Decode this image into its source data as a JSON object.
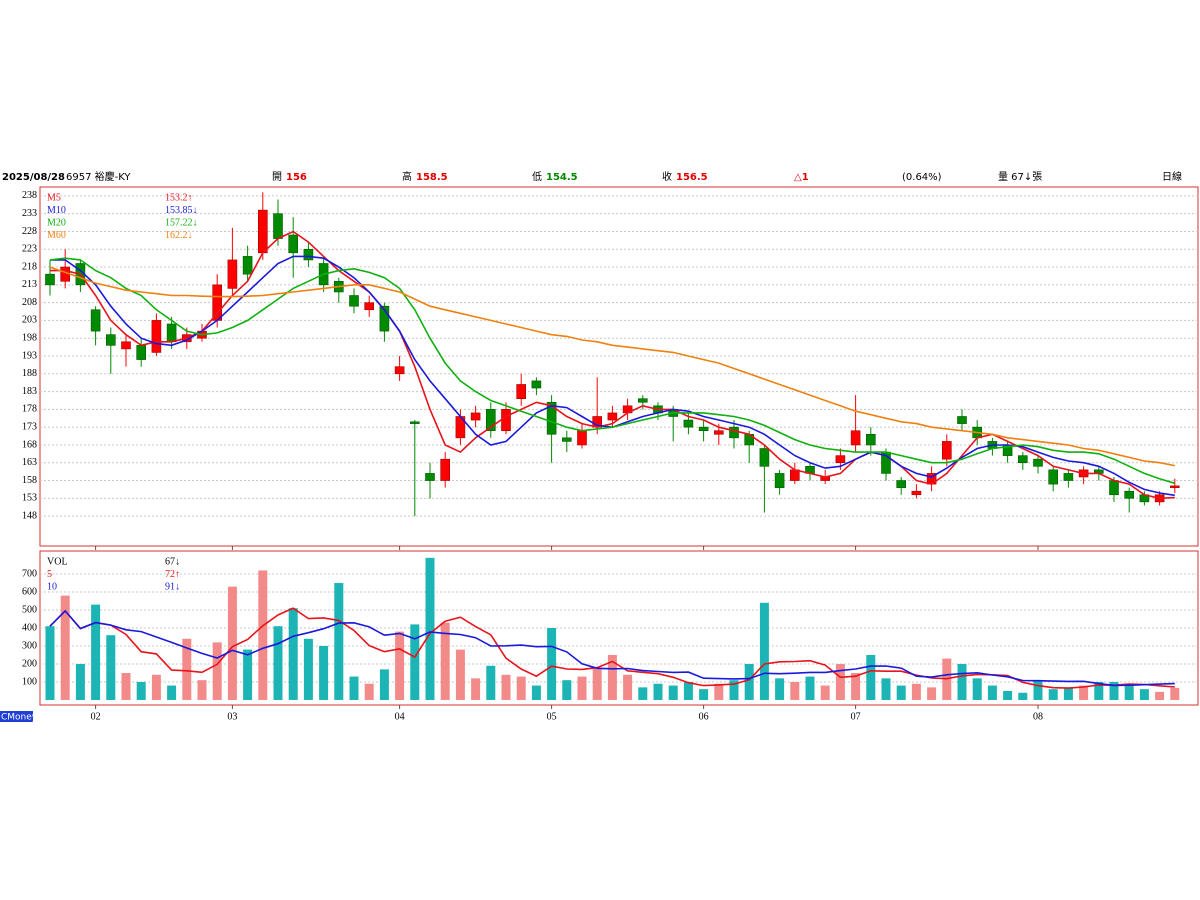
{
  "header": {
    "date": "2025/08/28",
    "name": "6957 裕慶-KY",
    "open_label": "開",
    "open": "156",
    "high_label": "高",
    "high": "158.5",
    "low_label": "低",
    "low": "154.5",
    "close_label": "收",
    "close": "156.5",
    "change": "△1",
    "change_pct": "(0.64%)",
    "volume": "量 67↓張",
    "period": "日線"
  },
  "footer": "CMoney",
  "chart_data": [
    {
      "type": "candlestick",
      "up_color": "#ff0000",
      "down_color": "#008a00",
      "grid": true,
      "categories": [
        null,
        null,
        null,
        "02",
        null,
        null,
        null,
        null,
        null,
        null,
        null,
        null,
        "03",
        null,
        null,
        null,
        null,
        null,
        null,
        null,
        null,
        null,
        null,
        "04",
        null,
        null,
        null,
        null,
        null,
        null,
        null,
        null,
        null,
        "05",
        null,
        null,
        null,
        null,
        null,
        null,
        null,
        null,
        null,
        "06",
        null,
        null,
        null,
        null,
        null,
        null,
        null,
        null,
        null,
        "07",
        null,
        null,
        null,
        null,
        null,
        null,
        null,
        null,
        null,
        null,
        null,
        "08",
        null,
        null,
        null,
        null,
        null,
        null,
        null,
        null,
        null
      ],
      "open": [
        216,
        214,
        219,
        206,
        199,
        195,
        196,
        194,
        202,
        197,
        198,
        203,
        212,
        221,
        222,
        233,
        227,
        223,
        219,
        214,
        210,
        206,
        207,
        188,
        174.5,
        160,
        158,
        170,
        175,
        178,
        172,
        181,
        186,
        180,
        170,
        168,
        173,
        175,
        177,
        181,
        179,
        178,
        175,
        173,
        171,
        173,
        171,
        167,
        160,
        158,
        162,
        158,
        163,
        168,
        171,
        166,
        158,
        154,
        157,
        164,
        176,
        173,
        169,
        168,
        165,
        164,
        161,
        160,
        159,
        161,
        158,
        155,
        154,
        152,
        156
      ],
      "high": [
        220,
        223,
        220,
        207,
        201,
        199,
        198,
        205,
        204,
        201,
        202,
        216,
        229,
        224,
        239,
        237,
        232,
        225,
        221,
        215,
        212,
        210,
        208,
        193,
        175,
        163,
        166,
        178,
        179,
        180,
        180,
        188,
        187,
        182,
        172,
        174,
        187,
        179,
        181,
        182,
        180,
        179,
        177,
        175,
        174,
        175,
        172,
        168,
        161,
        163,
        163,
        161,
        167,
        182,
        173,
        167,
        159,
        157,
        162,
        171,
        178,
        175,
        170,
        169,
        166,
        165,
        162,
        161,
        162,
        162,
        159,
        156,
        155,
        155,
        158.5
      ],
      "low": [
        210,
        212,
        211,
        196,
        188,
        190,
        190,
        193,
        195,
        195,
        197,
        201,
        210,
        214,
        220,
        224,
        215,
        218,
        211,
        208,
        205,
        204,
        197,
        186,
        148,
        153,
        156,
        168,
        173,
        170,
        171,
        179,
        182,
        163,
        166,
        167,
        171,
        173,
        175,
        178,
        175,
        169,
        171,
        169,
        168,
        167,
        163,
        149,
        154,
        157,
        158,
        157,
        161,
        166,
        165,
        158,
        154,
        153,
        155,
        162,
        172,
        168,
        165,
        163,
        161,
        160,
        155,
        156,
        157,
        158,
        152,
        149,
        151,
        151,
        154.5
      ],
      "close": [
        213,
        218,
        213,
        200,
        196,
        197,
        192,
        203,
        197,
        199,
        200,
        213,
        220,
        216,
        234,
        226,
        222,
        220,
        213,
        211,
        207,
        208,
        200,
        190,
        174,
        158,
        164,
        176,
        177,
        172,
        178,
        185,
        184,
        171,
        169,
        172,
        176,
        177,
        179,
        180,
        177,
        176,
        173,
        172,
        172,
        170,
        168,
        162,
        156,
        161,
        160,
        159,
        165,
        172,
        168,
        160,
        156,
        155,
        160,
        169,
        174,
        170,
        167,
        165,
        163,
        162,
        157,
        158,
        161,
        160,
        154,
        153,
        152,
        154,
        156.5
      ],
      "series": [
        {
          "name": "M5",
          "color": "#e8141c",
          "label": "153.2↑",
          "values": [
            217,
            217,
            216,
            210,
            203,
            199,
            196,
            197,
            197,
            198,
            200,
            205,
            210,
            214,
            222,
            226,
            228,
            225,
            221,
            217,
            214,
            211,
            206,
            200,
            190,
            178,
            168,
            166,
            170,
            173,
            176,
            178,
            180,
            179,
            176,
            174,
            173,
            174,
            177,
            179,
            178,
            178,
            176,
            175,
            173,
            172,
            171,
            168,
            164,
            161,
            160,
            159,
            160,
            164,
            166,
            165,
            162,
            158,
            157,
            160,
            165,
            170,
            171,
            169,
            167,
            165,
            162,
            161,
            160,
            160,
            158,
            157,
            154,
            153,
            153.2
          ]
        },
        {
          "name": "M10",
          "color": "#1a1adc",
          "label": "153.85↓",
          "values": [
            220,
            220,
            217,
            213,
            207,
            202,
            198,
            196.5,
            196,
            197.5,
            200,
            203,
            207,
            211,
            215,
            219,
            221,
            221,
            220.5,
            218,
            215,
            211,
            206,
            200,
            192,
            186,
            181,
            176,
            171,
            168,
            169,
            173,
            177,
            179,
            178.5,
            176,
            173.5,
            173,
            174.5,
            176,
            177,
            178,
            177.5,
            176,
            175,
            174,
            173,
            171,
            168,
            165,
            163,
            161.5,
            162,
            164,
            166,
            165,
            162,
            160,
            159,
            161.5,
            164.5,
            167,
            168,
            168,
            167.5,
            166,
            164.5,
            163.5,
            163,
            162,
            160,
            157.5,
            155.5,
            154.5,
            153.85
          ]
        },
        {
          "name": "M20",
          "color": "#10b010",
          "label": "157.22↓",
          "values": [
            220,
            220.5,
            220,
            217,
            215,
            212,
            210,
            206,
            203,
            200,
            199,
            199.5,
            201,
            203,
            206,
            209,
            212,
            214,
            216,
            217,
            217.5,
            216.5,
            215,
            212,
            206,
            198,
            191,
            186,
            183,
            180.5,
            179,
            177.5,
            176,
            174.5,
            173,
            172,
            172.5,
            173,
            174,
            175,
            176,
            177,
            177,
            177,
            176.5,
            176,
            175,
            173.5,
            171.5,
            169.5,
            168,
            167,
            166.5,
            166,
            166,
            166,
            165,
            164,
            163,
            163,
            164,
            165.5,
            167,
            167.5,
            168,
            167.5,
            166.5,
            166,
            166,
            165.5,
            164,
            162,
            160,
            158.5,
            157.22
          ]
        },
        {
          "name": "M60",
          "color": "#f08010",
          "label": "162.2↓",
          "values": [
            218,
            216.5,
            215,
            213.5,
            212.5,
            211.5,
            211,
            210.5,
            210,
            210,
            209.8,
            209.7,
            209.7,
            209.8,
            210,
            210.5,
            211,
            211.5,
            212,
            212.5,
            213,
            213,
            212,
            211,
            209,
            207,
            206,
            205,
            204,
            203,
            202,
            201,
            200,
            199,
            198.5,
            197.5,
            197,
            196,
            195.5,
            195,
            194.5,
            194,
            193,
            192,
            191,
            189.5,
            188,
            186.5,
            185,
            183.5,
            182,
            180.5,
            179,
            177.5,
            176.5,
            175.5,
            174.5,
            174,
            173,
            172.5,
            172,
            171.5,
            171,
            170,
            169.5,
            169,
            168.5,
            168,
            167,
            166.5,
            165.5,
            164.5,
            163.5,
            163,
            162.2
          ]
        }
      ],
      "ylim": [
        139.6,
        240.5
      ],
      "yticks": [
        238,
        233,
        228,
        223,
        218,
        213,
        208,
        203,
        198,
        193,
        188,
        183,
        178,
        173,
        168,
        163,
        158,
        153,
        148
      ]
    },
    {
      "type": "bar",
      "up_color": "#f28a8a",
      "down_color": "#1cb4b4",
      "grid": true,
      "legend_title": "VOL",
      "legend_value": "67↓",
      "values": [
        410,
        580,
        200,
        530,
        360,
        150,
        100,
        140,
        80,
        340,
        110,
        320,
        630,
        280,
        720,
        410,
        510,
        340,
        300,
        650,
        130,
        90,
        170,
        380,
        420,
        790,
        430,
        280,
        120,
        190,
        140,
        130,
        80,
        400,
        110,
        130,
        180,
        250,
        140,
        70,
        90,
        80,
        100,
        60,
        90,
        110,
        200,
        540,
        120,
        100,
        130,
        80,
        200,
        150,
        250,
        120,
        80,
        90,
        70,
        230,
        200,
        120,
        80,
        50,
        40,
        110,
        60,
        70,
        80,
        100,
        100,
        90,
        60,
        45,
        67
      ],
      "series": [
        {
          "name": "5",
          "color": "#e8141c",
          "label": "72↑",
          "values": [
            410,
            495,
            397,
            430,
            416,
            364,
            268,
            256,
            166,
            162,
            154,
            198,
            296,
            336,
            412,
            472,
            510,
            452,
            456,
            442,
            386,
            302,
            268,
            284,
            238,
            370,
            438,
            460,
            408,
            362,
            232,
            172,
            132,
            188,
            172,
            170,
            180,
            214,
            162,
            154,
            146,
            126,
            96,
            80,
            84,
            88,
            112,
            200,
            212,
            214,
            218,
            194,
            126,
            132,
            162,
            160,
            160,
            138,
            122,
            118,
            134,
            142,
            140,
            136,
            98,
            80,
            68,
            66,
            72,
            84,
            82,
            88,
            86,
            79,
            72
          ]
        },
        {
          "name": "10",
          "color": "#1a1adc",
          "label": "91↓",
          "values": [
            410,
            495,
            397,
            430,
            416,
            390,
            380,
            350,
            320,
            289,
            259,
            233,
            276,
            251,
            287,
            313,
            354,
            374,
            396,
            427,
            429,
            406,
            360,
            370,
            340,
            378,
            370,
            364,
            346,
            300,
            301,
            305,
            296,
            298,
            267,
            201,
            176,
            173,
            175,
            163,
            158,
            153,
            155,
            121,
            119,
            117,
            119,
            148,
            146,
            149,
            153,
            153,
            163,
            172,
            188,
            189,
            177,
            132,
            127,
            140,
            147,
            151,
            139,
            129,
            108,
            107,
            105,
            103,
            104,
            91,
            81,
            82,
            85,
            88,
            91
          ]
        }
      ],
      "ylim": [
        -28,
        828
      ],
      "yticks": [
        100,
        200,
        300,
        400,
        500,
        600,
        700
      ]
    }
  ]
}
